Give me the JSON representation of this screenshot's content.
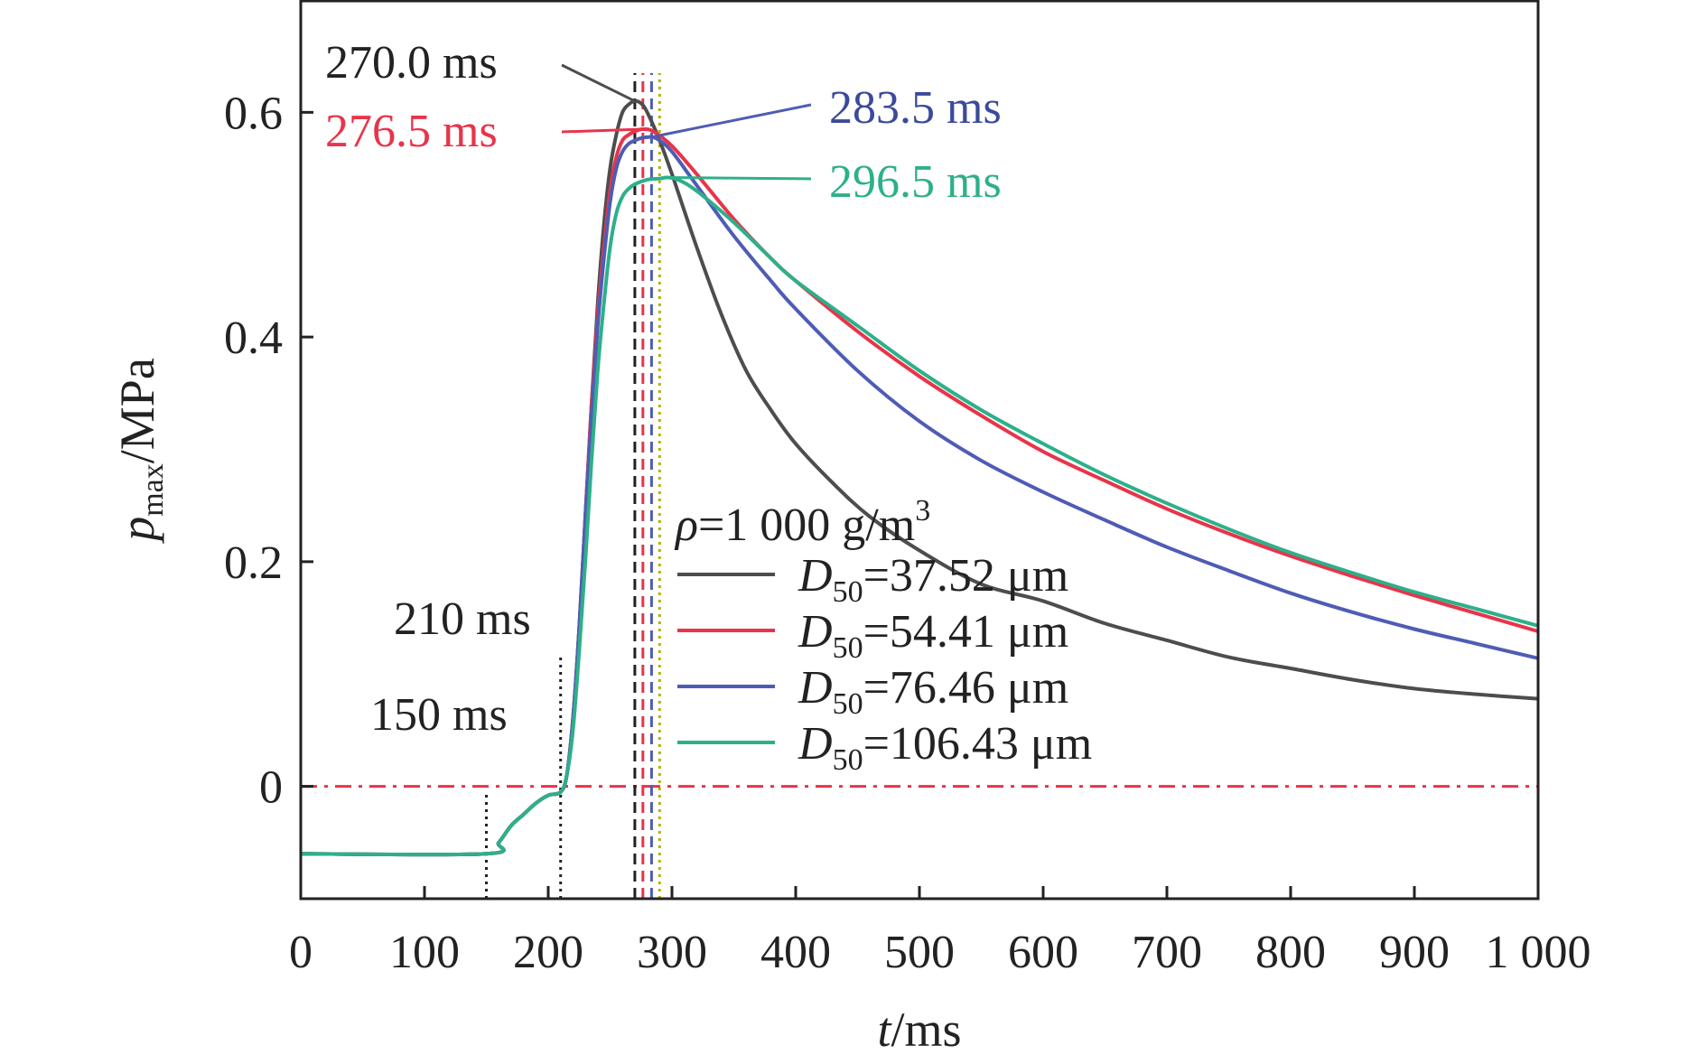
{
  "chart_data": {
    "type": "line",
    "xlabel": {
      "italic": "t",
      "rest": "/ms"
    },
    "ylabel": {
      "italic": "p",
      "sub": "max",
      "rest": "/MPa"
    },
    "xlim": [
      0,
      1000
    ],
    "ylim": [
      -0.1,
      0.7
    ],
    "xticks": [
      0,
      100,
      200,
      300,
      400,
      500,
      600,
      700,
      800,
      900,
      1000
    ],
    "xtick_labels": [
      "0",
      "100",
      "200",
      "300",
      "400",
      "500",
      "600",
      "700",
      "800",
      "900",
      "1 000"
    ],
    "yticks": [
      0,
      0.2,
      0.4,
      0.6
    ],
    "ytick_labels": [
      "0",
      "0.2",
      "0.4",
      "0.6"
    ],
    "grid": false,
    "legend": {
      "position": "center-right",
      "header": {
        "italic": "ρ",
        "rest": "=1 000 g/m",
        "sup": "3"
      },
      "items": [
        {
          "italic": "D",
          "sub": "50",
          "rest": "=37.52 μm"
        },
        {
          "italic": "D",
          "sub": "50",
          "rest": "=54.41 μm"
        },
        {
          "italic": "D",
          "sub": "50",
          "rest": "=76.46 μm"
        },
        {
          "italic": "D",
          "sub": "50",
          "rest": "=106.43 μm"
        }
      ]
    },
    "series": [
      {
        "color": "#4d4d4d",
        "peak_time": 270.0,
        "peak_value": 0.61,
        "x": [
          0,
          150,
          160,
          170,
          180,
          190,
          200,
          210,
          215,
          220,
          225,
          230,
          235,
          240,
          245,
          250,
          255,
          260,
          265,
          270,
          275,
          280,
          290,
          300,
          320,
          340,
          360,
          380,
          400,
          430,
          460,
          500,
          550,
          600,
          650,
          700,
          750,
          800,
          850,
          900,
          950,
          1000
        ],
        "values": [
          -0.06,
          -0.06,
          -0.05,
          -0.035,
          -0.025,
          -0.015,
          -0.008,
          -0.005,
          0.01,
          0.06,
          0.14,
          0.24,
          0.34,
          0.43,
          0.5,
          0.55,
          0.58,
          0.6,
          0.607,
          0.61,
          0.608,
          0.6,
          0.575,
          0.545,
          0.48,
          0.42,
          0.37,
          0.335,
          0.305,
          0.27,
          0.24,
          0.21,
          0.18,
          0.165,
          0.145,
          0.13,
          0.115,
          0.105,
          0.095,
          0.087,
          0.082,
          0.078
        ]
      },
      {
        "color": "#e8344a",
        "peak_time": 276.5,
        "peak_value": 0.585,
        "x": [
          0,
          150,
          160,
          170,
          180,
          190,
          200,
          210,
          215,
          220,
          225,
          230,
          235,
          240,
          245,
          250,
          255,
          260,
          265,
          270,
          276.5,
          285,
          300,
          320,
          350,
          380,
          400,
          450,
          500,
          550,
          600,
          650,
          700,
          750,
          800,
          850,
          900,
          950,
          1000
        ],
        "values": [
          -0.06,
          -0.06,
          -0.05,
          -0.035,
          -0.025,
          -0.015,
          -0.008,
          -0.005,
          0.01,
          0.06,
          0.14,
          0.24,
          0.34,
          0.42,
          0.48,
          0.53,
          0.56,
          0.575,
          0.58,
          0.583,
          0.585,
          0.583,
          0.57,
          0.545,
          0.505,
          0.47,
          0.45,
          0.405,
          0.365,
          0.33,
          0.298,
          0.272,
          0.247,
          0.225,
          0.205,
          0.187,
          0.17,
          0.154,
          0.138
        ]
      },
      {
        "color": "#4f5cb5",
        "peak_time": 283.5,
        "peak_value": 0.578,
        "x": [
          0,
          150,
          160,
          170,
          180,
          190,
          200,
          210,
          215,
          220,
          225,
          230,
          235,
          240,
          245,
          250,
          255,
          260,
          265,
          270,
          275,
          283.5,
          290,
          300,
          320,
          350,
          380,
          400,
          450,
          500,
          550,
          600,
          650,
          700,
          750,
          800,
          850,
          900,
          950,
          1000
        ],
        "values": [
          -0.06,
          -0.06,
          -0.05,
          -0.035,
          -0.025,
          -0.015,
          -0.008,
          -0.005,
          0.01,
          0.06,
          0.14,
          0.24,
          0.33,
          0.41,
          0.47,
          0.52,
          0.55,
          0.565,
          0.572,
          0.575,
          0.577,
          0.578,
          0.575,
          0.565,
          0.535,
          0.49,
          0.45,
          0.425,
          0.37,
          0.325,
          0.29,
          0.262,
          0.237,
          0.213,
          0.192,
          0.172,
          0.155,
          0.14,
          0.127,
          0.114
        ]
      },
      {
        "color": "#2db08a",
        "peak_time": 296.5,
        "peak_value": 0.542,
        "x": [
          0,
          150,
          160,
          170,
          180,
          190,
          200,
          210,
          215,
          220,
          225,
          230,
          235,
          240,
          245,
          250,
          255,
          260,
          265,
          270,
          280,
          290,
          296.5,
          305,
          320,
          350,
          380,
          400,
          450,
          500,
          550,
          600,
          650,
          700,
          750,
          800,
          850,
          900,
          950,
          1000
        ],
        "values": [
          -0.06,
          -0.06,
          -0.05,
          -0.035,
          -0.025,
          -0.015,
          -0.008,
          -0.005,
          0.01,
          0.05,
          0.12,
          0.2,
          0.29,
          0.37,
          0.43,
          0.48,
          0.51,
          0.525,
          0.532,
          0.536,
          0.54,
          0.541,
          0.542,
          0.54,
          0.53,
          0.502,
          0.47,
          0.45,
          0.41,
          0.37,
          0.335,
          0.305,
          0.277,
          0.252,
          0.229,
          0.208,
          0.19,
          0.173,
          0.158,
          0.143
        ]
      }
    ],
    "reference_lines": [
      {
        "orientation": "horizontal",
        "value": 0,
        "color": "#e8344a",
        "style": "dashdot"
      },
      {
        "orientation": "vertical",
        "value": 150,
        "color": "#222222",
        "style": "dotted",
        "y_top": -0.005
      },
      {
        "orientation": "vertical",
        "value": 210,
        "color": "#222222",
        "style": "dotted",
        "y_top": 0.115
      },
      {
        "orientation": "vertical",
        "value": 270.0,
        "color": "#222222",
        "style": "dashed"
      },
      {
        "orientation": "vertical",
        "value": 276.5,
        "color": "#e8344a",
        "style": "dashed"
      },
      {
        "orientation": "vertical",
        "value": 283.5,
        "color": "#4f5cb5",
        "style": "dashed"
      },
      {
        "orientation": "vertical",
        "value": 290,
        "color": "#b8b000",
        "style": "dotted"
      }
    ],
    "annotations": [
      {
        "text": "270.0 ms",
        "color": "#222222",
        "line_color": "#4d4d4d",
        "target": [
          270.0,
          0.61
        ],
        "anchor": "left"
      },
      {
        "text": "276.5 ms",
        "color": "#e8344a",
        "line_color": "#e8344a",
        "target": [
          276.5,
          0.585
        ],
        "anchor": "left"
      },
      {
        "text": "283.5 ms",
        "color": "#3b4a9a",
        "line_color": "#4f5cb5",
        "target": [
          283.5,
          0.578
        ],
        "anchor": "right"
      },
      {
        "text": "296.5 ms",
        "color": "#2db08a",
        "line_color": "#2db08a",
        "target": [
          296.5,
          0.542
        ],
        "anchor": "right"
      },
      {
        "text": "210 ms",
        "color": "#222222",
        "line_color": null,
        "target": [
          210,
          0.115
        ],
        "anchor": "left"
      },
      {
        "text": "150 ms",
        "color": "#222222",
        "line_color": null,
        "target": [
          150,
          0.03
        ],
        "anchor": "left"
      }
    ]
  }
}
